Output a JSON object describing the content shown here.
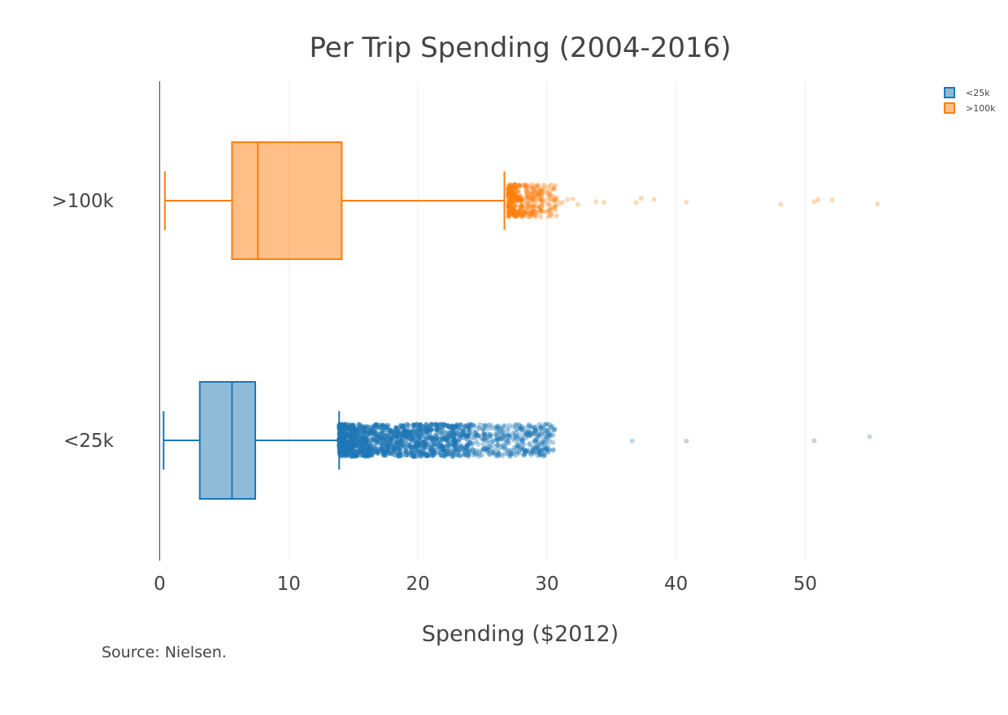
{
  "chart_data": {
    "type": "box",
    "orientation": "horizontal",
    "title": "Per Trip Spending (2004-2016)",
    "xlabel": "Spending ($2012)",
    "ylabel": "",
    "xlim": [
      0,
      58.5
    ],
    "xticks": [
      0,
      10,
      20,
      30,
      40,
      50
    ],
    "grid": true,
    "legend_position": "top-right",
    "source": "Source: Nielsen.",
    "series": [
      {
        "name": ">100k",
        "category": ">100k",
        "color": "#ff7f0e",
        "whisker_low": 0.4,
        "q1": 5.6,
        "median": 7.6,
        "q3": 14.1,
        "whisker_high": 26.7,
        "outlier_range": [
          27.0,
          30.8
        ],
        "sparse_outliers": [
          31.0,
          31.2,
          31.6,
          32.0,
          32.4,
          33.8,
          34.4,
          36.9,
          37.3,
          38.3,
          40.8,
          48.1,
          50.7,
          51.0,
          52.1,
          55.6
        ]
      },
      {
        "name": "<25k",
        "category": "<25k",
        "color": "#1f77b4",
        "whisker_low": 0.3,
        "q1": 3.1,
        "median": 5.6,
        "q3": 7.4,
        "whisker_high": 13.9,
        "outlier_range": [
          13.9,
          30.6
        ],
        "sparse_outliers": [
          36.6,
          40.8,
          50.7,
          55.0
        ]
      }
    ]
  }
}
